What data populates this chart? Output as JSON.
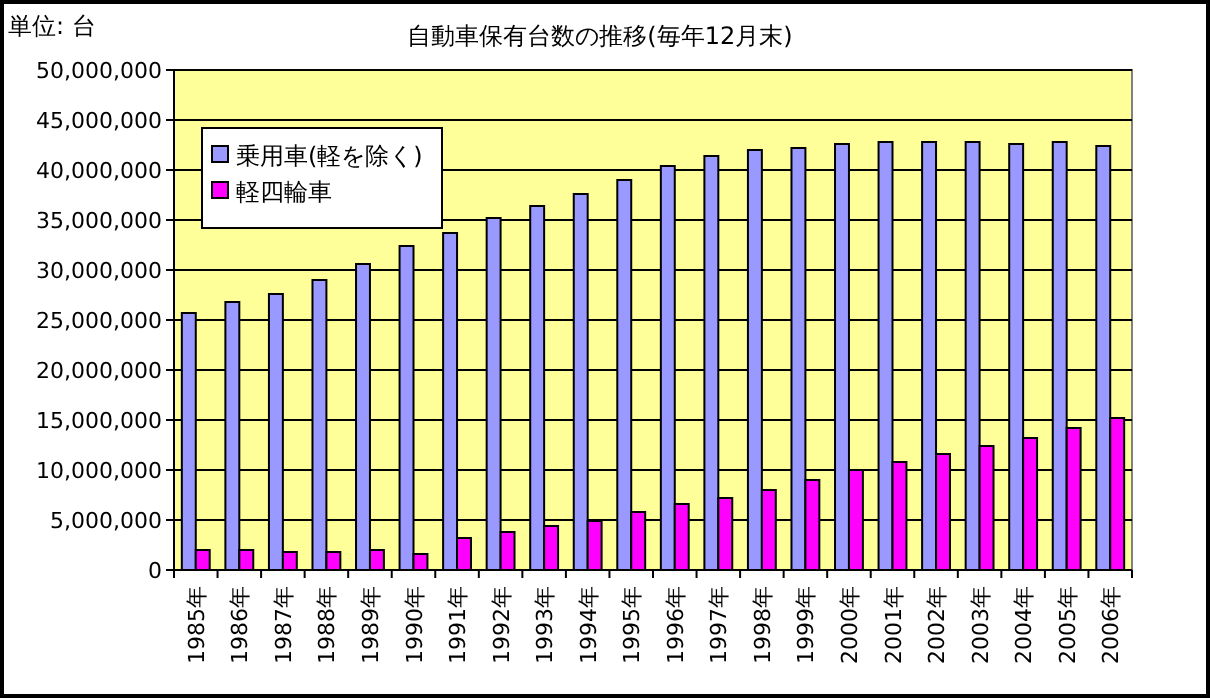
{
  "chart_data": {
    "type": "bar",
    "title": "自動車保有台数の推移(毎年12月末)",
    "ylabel": "単位: 台",
    "categories": [
      "1985年",
      "1986年",
      "1987年",
      "1988年",
      "1989年",
      "1990年",
      "1991年",
      "1992年",
      "1993年",
      "1994年",
      "1995年",
      "1996年",
      "1997年",
      "1998年",
      "1999年",
      "2000年",
      "2001年",
      "2002年",
      "2003年",
      "2004年",
      "2005年",
      "2006年"
    ],
    "series": [
      {
        "name": "乗用車(軽を除く)",
        "color": "#9999ff",
        "values": [
          25700000,
          26800000,
          27600000,
          29000000,
          30600000,
          32400000,
          33700000,
          35200000,
          36400000,
          37600000,
          39000000,
          40400000,
          41400000,
          42000000,
          42200000,
          42600000,
          42800000,
          42800000,
          42800000,
          42600000,
          42800000,
          42400000
        ]
      },
      {
        "name": "軽四輪車",
        "color": "#ff00ff",
        "values": [
          2000000,
          2000000,
          1800000,
          1800000,
          2000000,
          1600000,
          3200000,
          3800000,
          4400000,
          4900000,
          5800000,
          6600000,
          7200000,
          8000000,
          9000000,
          10000000,
          10800000,
          11600000,
          12400000,
          13200000,
          14200000,
          15200000
        ]
      }
    ],
    "ylim": [
      0,
      50000000
    ],
    "yticks": [
      {
        "value": 0,
        "label": "0"
      },
      {
        "value": 5000000,
        "label": "5,000,000"
      },
      {
        "value": 10000000,
        "label": "10,000,000"
      },
      {
        "value": 15000000,
        "label": "15,000,000"
      },
      {
        "value": 20000000,
        "label": "20,000,000"
      },
      {
        "value": 25000000,
        "label": "25,000,000"
      },
      {
        "value": 30000000,
        "label": "30,000,000"
      },
      {
        "value": 35000000,
        "label": "35,000,000"
      },
      {
        "value": 40000000,
        "label": "40,000,000"
      },
      {
        "value": 45000000,
        "label": "45,000,000"
      },
      {
        "value": 50000000,
        "label": "50,000,000"
      }
    ],
    "grid": "y",
    "legend": "top left"
  }
}
